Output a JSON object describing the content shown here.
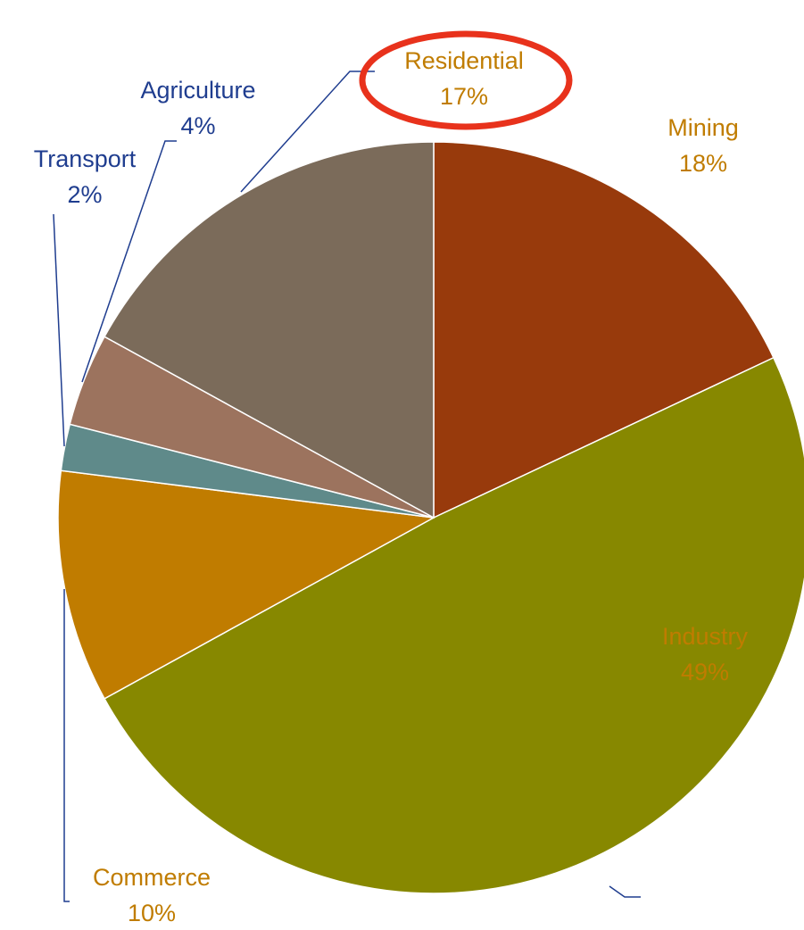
{
  "chart_data": {
    "type": "pie",
    "categories": [
      "Mining",
      "Industry",
      "Commerce",
      "Transport",
      "Agriculture",
      "Residential"
    ],
    "values": [
      18,
      49,
      10,
      2,
      4,
      17
    ],
    "value_labels": [
      "18%",
      "49%",
      "10%",
      "2%",
      "4%",
      "17%"
    ],
    "colors": [
      "#983a0c",
      "#878800",
      "#c07c00",
      "#5f8a8a",
      "#9c735e",
      "#7b6b5a"
    ],
    "label_colors": [
      "#c07c00",
      "#c07c00",
      "#c07c00",
      "#1f3d8f",
      "#1f3d8f",
      "#c07c00"
    ]
  }
}
